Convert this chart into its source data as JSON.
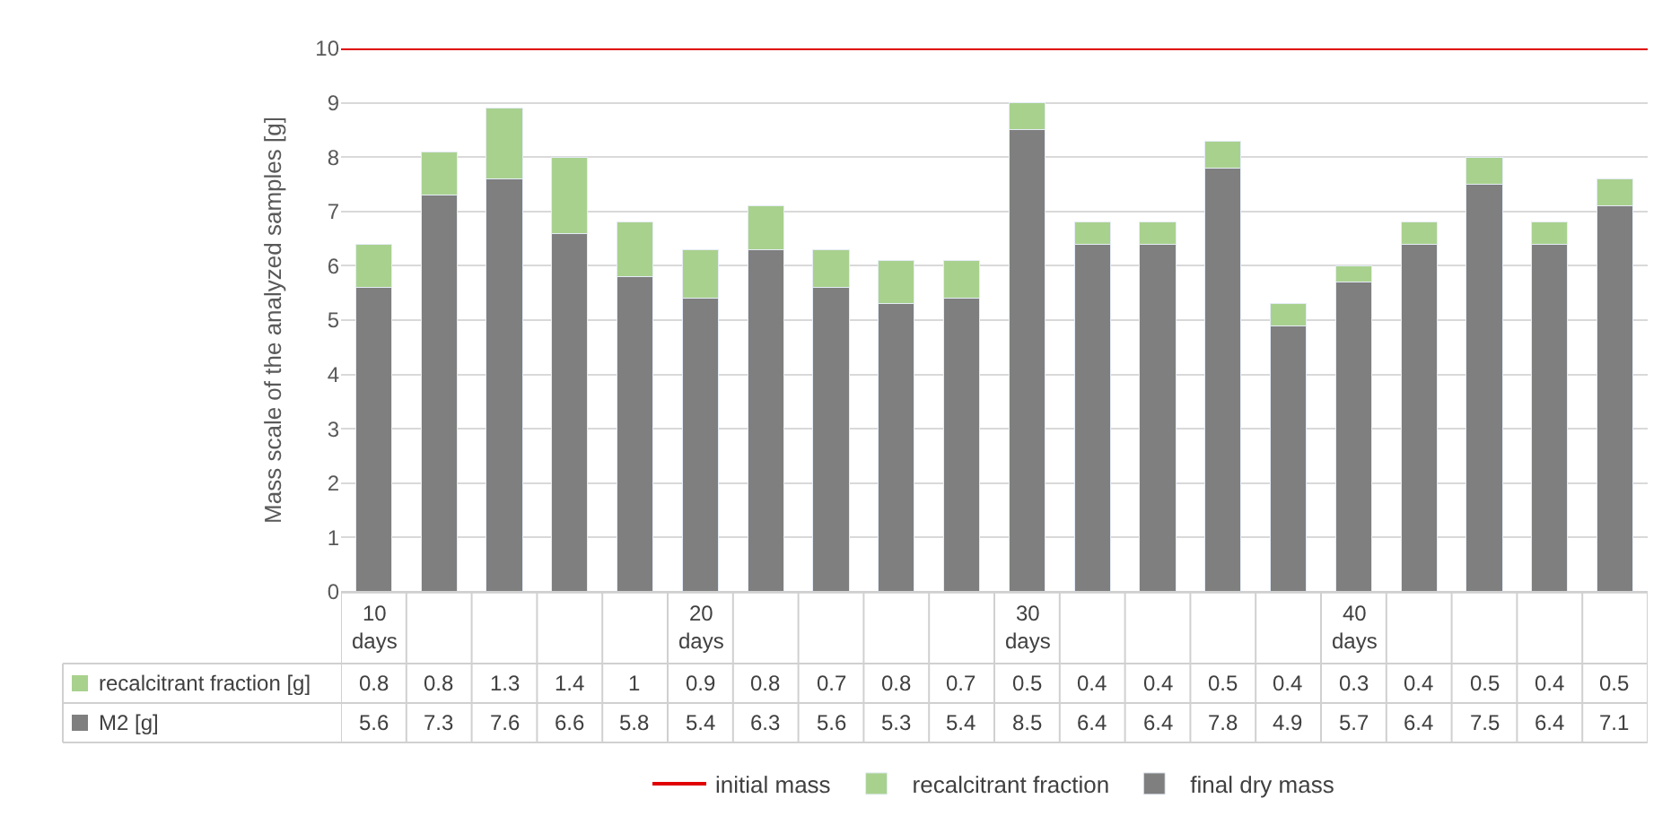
{
  "chart_data": {
    "type": "bar",
    "stacked": true,
    "ylabel": "Mass scale of the analyzed samples [g]",
    "categories": [
      "10 days",
      null,
      null,
      null,
      null,
      "20 days",
      null,
      null,
      null,
      null,
      "30 days",
      null,
      null,
      null,
      null,
      "40 days",
      null,
      null,
      null,
      null
    ],
    "series": [
      {
        "name": "final dry mass",
        "color": "#7f7f7f",
        "values": [
          5.6,
          7.3,
          7.6,
          6.6,
          5.8,
          5.4,
          6.3,
          5.6,
          5.3,
          5.4,
          8.5,
          6.4,
          6.4,
          7.8,
          4.9,
          5.7,
          6.4,
          7.5,
          6.4,
          7.1
        ]
      },
      {
        "name": "recalcitrant fraction",
        "color": "#a9d18e",
        "values": [
          0.8,
          0.8,
          1.3,
          1.4,
          1,
          0.9,
          0.8,
          0.7,
          0.8,
          0.7,
          0.5,
          0.4,
          0.4,
          0.5,
          0.4,
          0.3,
          0.4,
          0.5,
          0.4,
          0.5
        ]
      }
    ],
    "ref_lines": [
      {
        "axis": "y",
        "value": 10,
        "label": "initial mass",
        "color": "#e00000"
      }
    ],
    "annotations": [
      "recalcitrant fraction [g]",
      "M2 [g]"
    ],
    "data_labels": true,
    "ylim": [
      0,
      10
    ],
    "yticks": [
      0,
      1,
      2,
      3,
      4,
      5,
      6,
      7,
      8,
      9,
      10
    ],
    "grid": "y",
    "legend": "bottom"
  }
}
